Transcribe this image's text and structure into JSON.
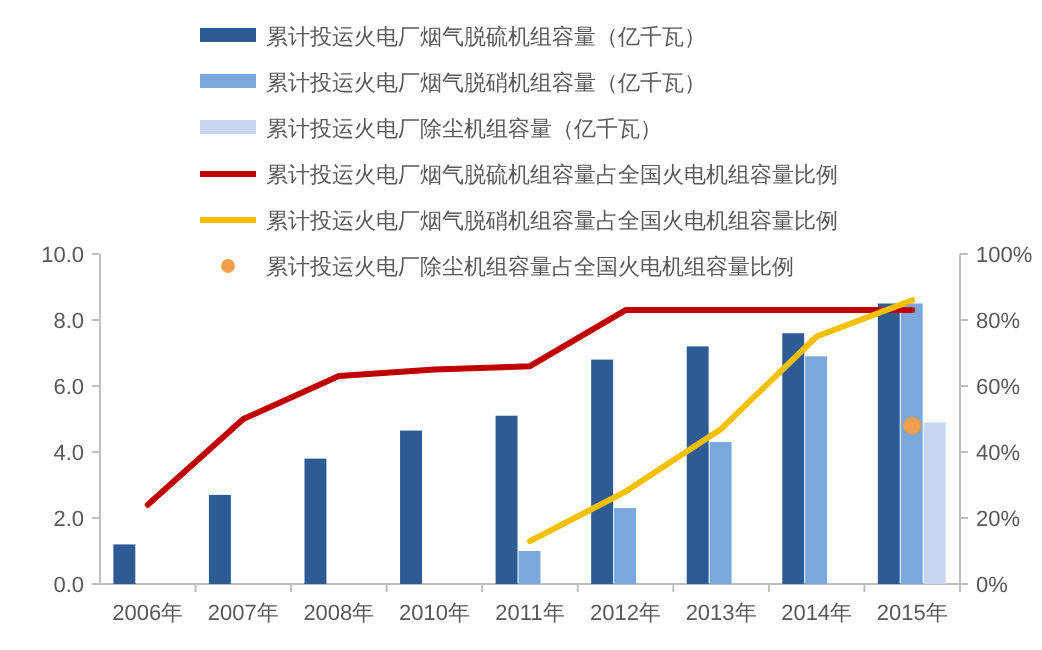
{
  "chart_data": {
    "type": "bar",
    "categories": [
      "2006年",
      "2007年",
      "2008年",
      "2010年",
      "2011年",
      "2012年",
      "2013年",
      "2014年",
      "2015年"
    ],
    "series": [
      {
        "name": "累计投运火电厂烟气脱硫机组容量（亿千瓦）",
        "color": "#2e5b94",
        "values": [
          1.2,
          2.7,
          3.8,
          4.65,
          5.1,
          6.8,
          7.2,
          7.6,
          8.5
        ]
      },
      {
        "name": "累计投运火电厂烟气脱硝机组容量（亿千瓦）",
        "color": "#7ba7dd",
        "values": [
          null,
          null,
          null,
          null,
          1.0,
          2.3,
          4.3,
          6.9,
          8.5
        ]
      },
      {
        "name": "累计投运火电厂除尘机组容量（亿千瓦）",
        "color": "#c6d7ef",
        "values": [
          null,
          null,
          null,
          null,
          null,
          null,
          null,
          null,
          4.9
        ]
      },
      {
        "name": "累计投运火电厂烟气脱硫机组容量占全国火电机组容量比例",
        "type": "line",
        "axis": "y2",
        "color": "#c00000",
        "values": [
          24,
          50,
          63,
          65,
          66,
          83,
          83,
          83,
          83
        ]
      },
      {
        "name": "累计投运火电厂烟气脱硝机组容量占全国火电机组容量比例",
        "type": "line",
        "axis": "y2",
        "color": "#f5c000",
        "values": [
          null,
          null,
          null,
          null,
          13,
          28,
          47,
          75,
          86
        ]
      },
      {
        "name": "累计投运火电厂除尘机组容量占全国火电机组容量比例",
        "type": "scatter",
        "axis": "y2",
        "marker": "circle",
        "color": "#f4a050",
        "values": [
          null,
          null,
          null,
          null,
          null,
          null,
          null,
          null,
          48
        ]
      }
    ],
    "ylim": [
      0,
      10
    ],
    "yticks": [
      {
        "value": 0,
        "label": "0.0"
      },
      {
        "value": 2,
        "label": "2.0"
      },
      {
        "value": 4,
        "label": "4.0"
      },
      {
        "value": 6,
        "label": "6.0"
      },
      {
        "value": 8,
        "label": "8.0"
      },
      {
        "value": 10,
        "label": "10.0"
      }
    ],
    "y2lim": [
      0,
      100
    ],
    "y2ticks": [
      {
        "value": 0,
        "label": "0%"
      },
      {
        "value": 20,
        "label": "20%"
      },
      {
        "value": 40,
        "label": "40%"
      },
      {
        "value": 60,
        "label": "60%"
      },
      {
        "value": 80,
        "label": "80%"
      },
      {
        "value": 100,
        "label": "100%"
      }
    ],
    "legend": "top",
    "grid": false,
    "line_style": "solid"
  }
}
